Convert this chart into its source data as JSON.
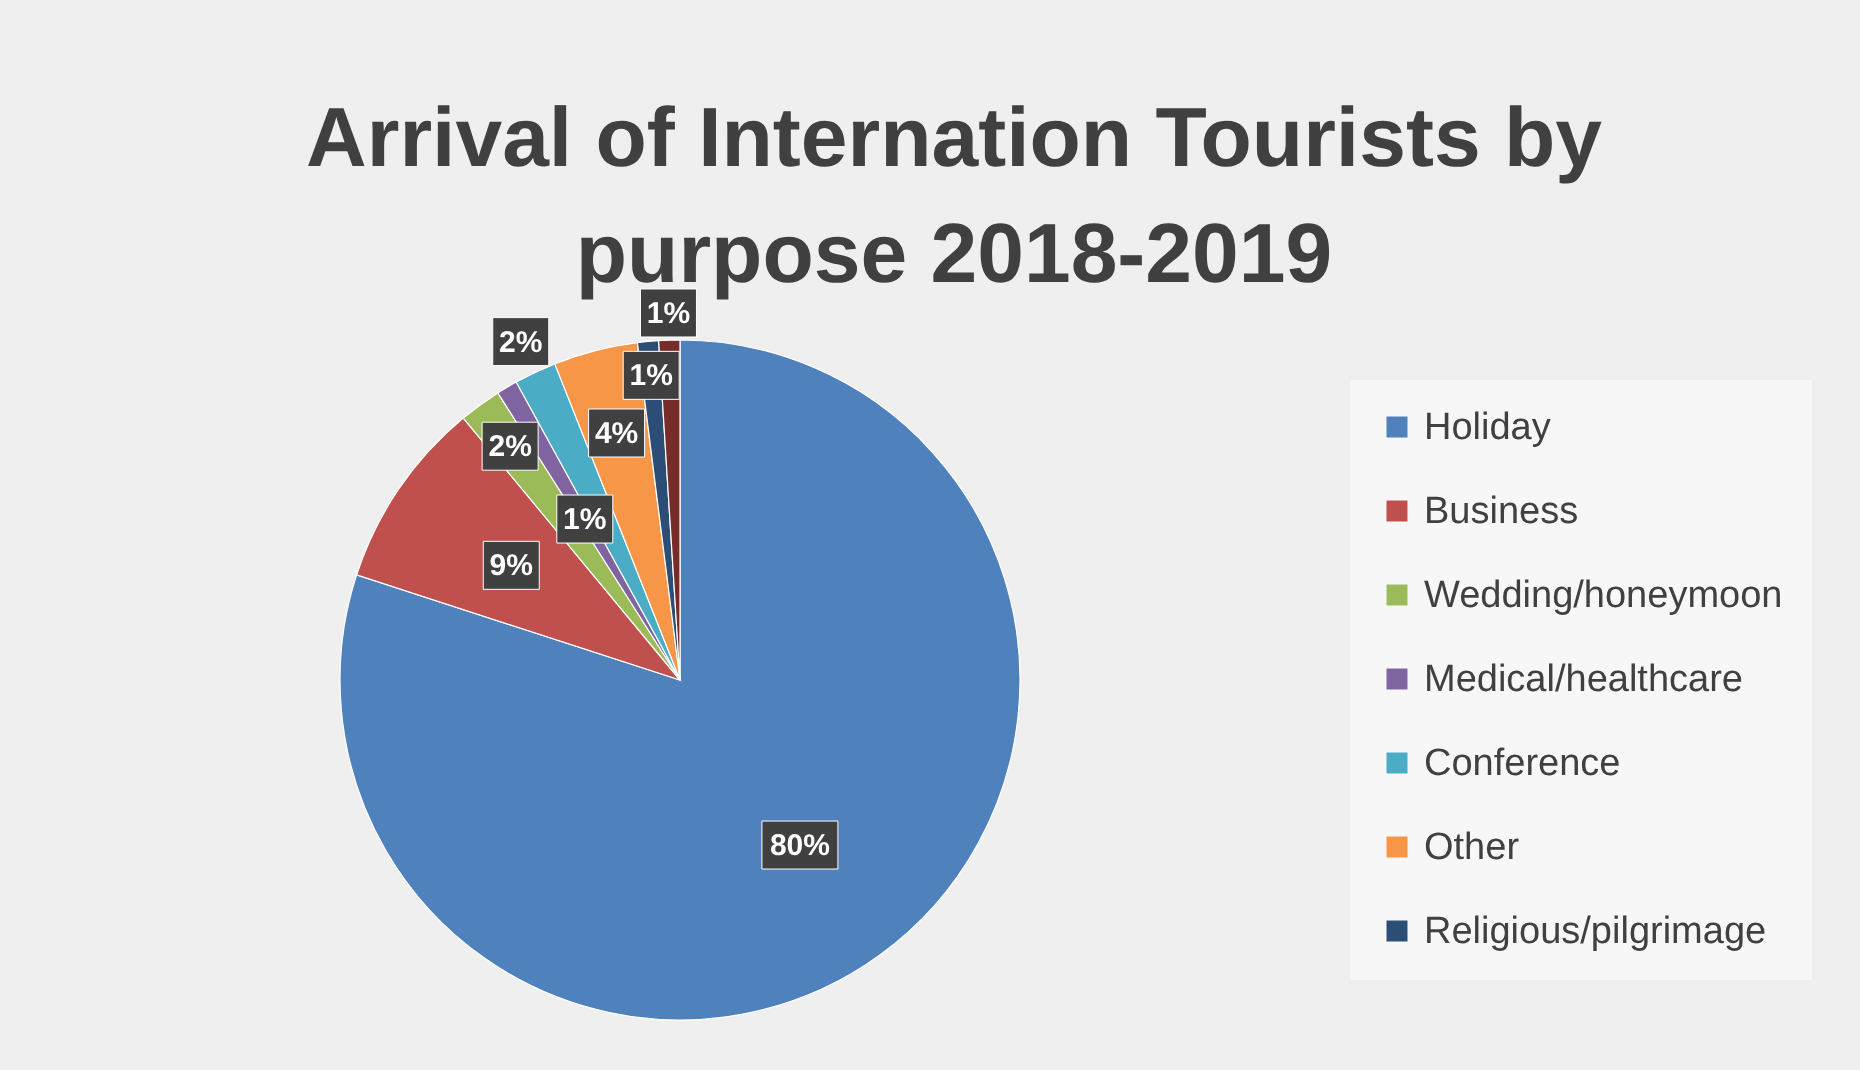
{
  "chart_data": {
    "type": "pie",
    "title": "Arrival of Internation Tourists by purpose 2018-2019",
    "categories": [
      "Holiday",
      "Business",
      "Wedding/honeymoon",
      "Medical/healthcare",
      "Conference",
      "Other",
      "Religious/pilgrimage",
      null
    ],
    "values": [
      80,
      9,
      2,
      1,
      2,
      4,
      1,
      1
    ],
    "value_labels": [
      "80%",
      "9%",
      "2%",
      "1%",
      "2%",
      "4%",
      "1%",
      "1%"
    ],
    "colors": [
      "#4f81bd",
      "#c0504d",
      "#9bbb59",
      "#8064a2",
      "#4bacc6",
      "#f79646",
      "#2c4d75",
      "#772c2a"
    ],
    "legend": "right"
  }
}
